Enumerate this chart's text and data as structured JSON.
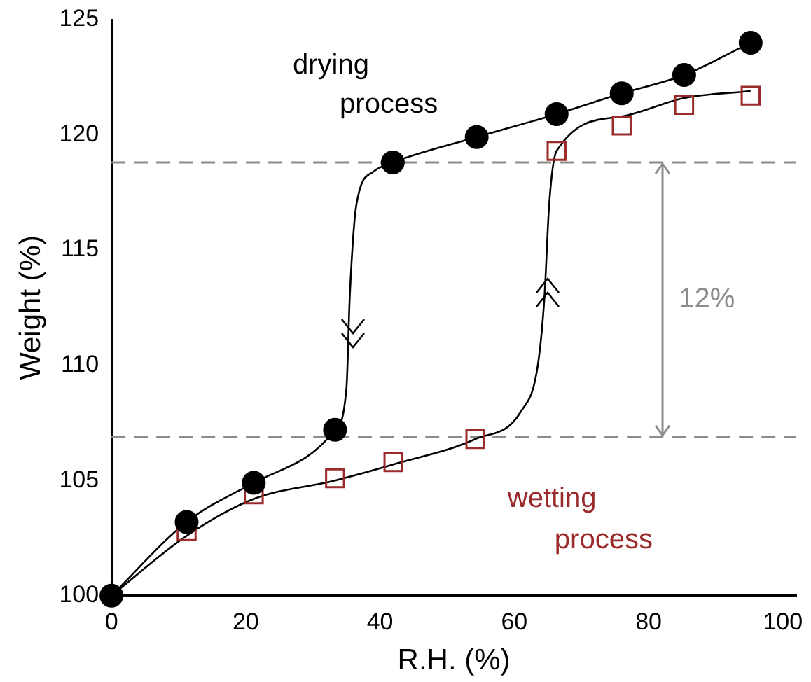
{
  "chart_data": {
    "type": "scatter",
    "xlabel": "R.H. (%)",
    "ylabel": "Weight (%)",
    "xlim": [
      0,
      102
    ],
    "xticks": [
      0,
      20,
      40,
      60,
      80,
      100
    ],
    "ylim": [
      100,
      125
    ],
    "yticks": [
      100,
      105,
      110,
      115,
      120,
      125
    ],
    "grid": false,
    "legend": false,
    "series": [
      {
        "name": "drying process",
        "color": "#000000",
        "marker": "circle",
        "x": [
          0,
          11.2,
          21.2,
          33.3,
          41.9,
          54.4,
          66.3,
          76,
          85.3,
          95.2
        ],
        "values": [
          100,
          103.2,
          104.9,
          107.2,
          118.8,
          119.9,
          120.9,
          121.8,
          122.6,
          124.0
        ]
      },
      {
        "name": "wetting process",
        "color": "#9b2a2a",
        "marker": "square",
        "x": [
          11.2,
          21.2,
          33.3,
          42,
          54.2,
          66.3,
          76,
          85.3,
          95.2
        ],
        "values": [
          102.8,
          104.4,
          105.1,
          105.8,
          106.8,
          119.3,
          120.4,
          121.3,
          121.7
        ]
      },
      {
        "type": "line",
        "color": "#000000",
        "marker": "none",
        "line_style": "solid",
        "x": [
          0,
          11.2,
          21.2,
          33.3,
          35,
          35.5,
          36.5,
          39,
          41.9,
          54.4,
          66.3,
          76,
          85.3,
          95.2
        ],
        "values": [
          100,
          103.2,
          104.9,
          107.2,
          109,
          113,
          117,
          118.4,
          118.8,
          119.9,
          120.9,
          121.8,
          122.6,
          124.0
        ]
      },
      {
        "type": "line",
        "color": "#000000",
        "marker": "none",
        "line_style": "solid",
        "x": [
          0,
          11.2,
          21.2,
          33.3,
          42,
          54.2,
          61,
          63.5,
          64.5,
          65.2,
          66.3,
          76,
          85.3,
          95.2
        ],
        "values": [
          100,
          102.6,
          104.2,
          105,
          105.7,
          106.8,
          108,
          110,
          113,
          117,
          119.3,
          120.8,
          121.6,
          121.9
        ]
      }
    ],
    "ref_lines": [
      {
        "axis": "y",
        "value": 118.8,
        "color": "#8c8c8c",
        "line_style": "dashed"
      },
      {
        "axis": "y",
        "value": 106.9,
        "color": "#8c8c8c",
        "line_style": "dashed"
      }
    ],
    "annotations": [
      "12%"
    ]
  }
}
